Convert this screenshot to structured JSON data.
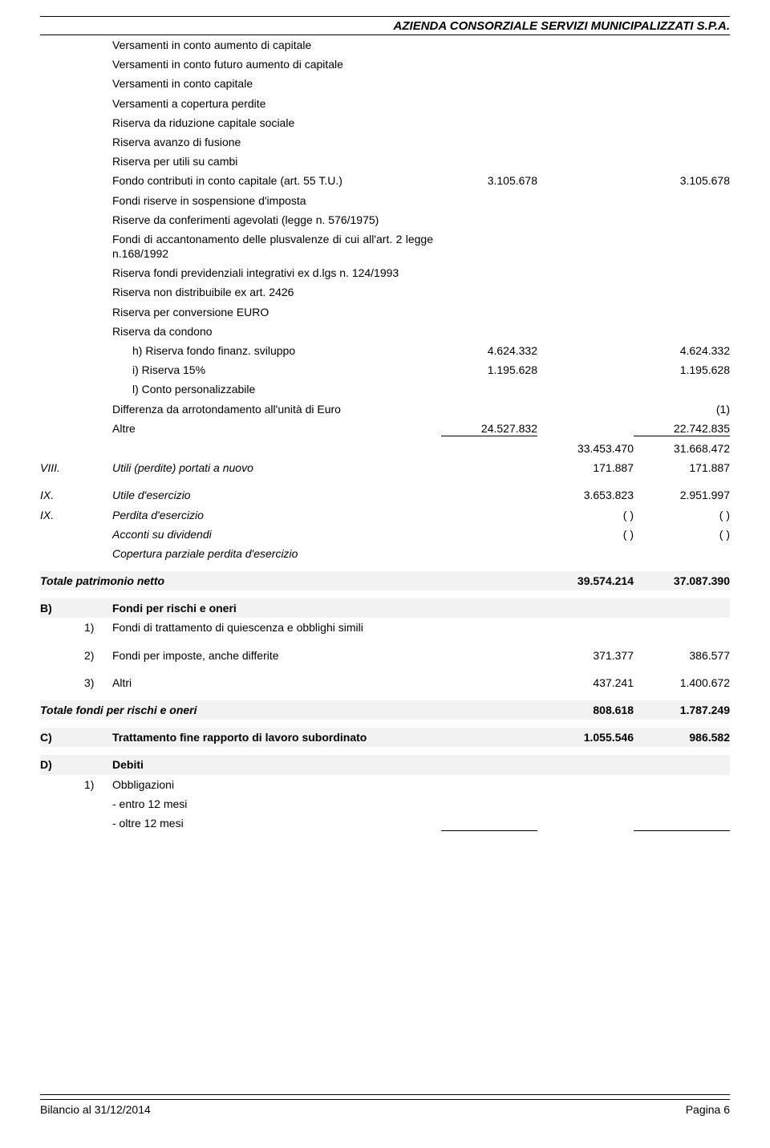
{
  "header": {
    "title": "AZIENDA CONSORZIALE SERVIZI MUNICIPALIZZATI S.P.A."
  },
  "items": {
    "versamenti_aumento": "Versamenti in conto aumento di capitale",
    "versamenti_futuro": "Versamenti in conto futuro aumento di capitale",
    "versamenti_capitale": "Versamenti in conto capitale",
    "versamenti_copertura": "Versamenti a copertura perdite",
    "riserva_riduzione": "Riserva da riduzione capitale sociale",
    "riserva_avanzo": "Riserva avanzo di fusione",
    "riserva_utili_cambi": "Riserva per utili su cambi",
    "fondo_contributi": "Fondo contributi in conto capitale (art. 55 T.U.)",
    "fondo_contributi_v1": "3.105.678",
    "fondo_contributi_v3": "3.105.678",
    "fondi_sospensione": "Fondi riserve in sospensione d'imposta",
    "riserve_conferimenti": "Riserve da  conferimenti agevolati (legge n. 576/1975)",
    "fondi_accantonamento": "Fondi di accantonamento delle plusvalenze di cui all'art. 2 legge n.168/1992",
    "riserva_previdenziali": "Riserva fondi previdenziali integrativi ex d.lgs n. 124/1993",
    "riserva_non_distrib": "Riserva non distribuibile ex art. 2426",
    "riserva_euro": "Riserva per conversione EURO",
    "riserva_condono": "Riserva da condono",
    "h_label": "h) Riserva fondo finanz. sviluppo",
    "h_v1": "4.624.332",
    "h_v3": "4.624.332",
    "i_label": "i) Riserva 15%",
    "i_v1": "1.195.628",
    "i_v3": "1.195.628",
    "l_label": "l) Conto personalizzabile",
    "diff_arrotond": "Differenza da arrotondamento all'unità di Euro",
    "diff_arrotond_v3": "(1)",
    "altre": "Altre",
    "altre_v1": "24.527.832",
    "altre_v3": "22.742.835",
    "subtotal_v2": "33.453.470",
    "subtotal_v3": "31.668.472",
    "viii_marker": "VIII.",
    "viii_label": "Utili (perdite) portati a nuovo",
    "viii_v2": "171.887",
    "viii_v3": "171.887",
    "ix_marker": "IX.",
    "ix_utile": "Utile d'esercizio",
    "ix_utile_v2": "3.653.823",
    "ix_utile_v3": "2.951.997",
    "ix_perdita": "Perdita d'esercizio",
    "paren": "( )",
    "acconti": "Acconti su dividendi",
    "copertura": "Copertura parziale perdita d'esercizio"
  },
  "totale_patrimonio": {
    "label": "Totale patrimonio netto",
    "v2": "39.574.214",
    "v3": "37.087.390"
  },
  "section_b": {
    "marker": "B)",
    "title": "Fondi per rischi e oneri",
    "r1_num": "1)",
    "r1_label": "Fondi di trattamento di quiescenza e obblighi simili",
    "r2_num": "2)",
    "r2_label": "Fondi per imposte, anche differite",
    "r2_v2": "371.377",
    "r2_v3": "386.577",
    "r3_num": "3)",
    "r3_label": "Altri",
    "r3_v2": "437.241",
    "r3_v3": "1.400.672"
  },
  "totale_fondi": {
    "label": "Totale fondi per rischi e oneri",
    "v2": "808.618",
    "v3": "1.787.249"
  },
  "section_c": {
    "marker": "C)",
    "title": "Trattamento fine rapporto di lavoro subordinato",
    "v2": "1.055.546",
    "v3": "986.582"
  },
  "section_d": {
    "marker": "D)",
    "title": "Debiti",
    "r1_num": "1)",
    "r1_label": "Obbligazioni",
    "entro": "- entro 12 mesi",
    "oltre": "- oltre 12 mesi"
  },
  "footer": {
    "left": "Bilancio al  31/12/2014",
    "right": "Pagina 6"
  }
}
